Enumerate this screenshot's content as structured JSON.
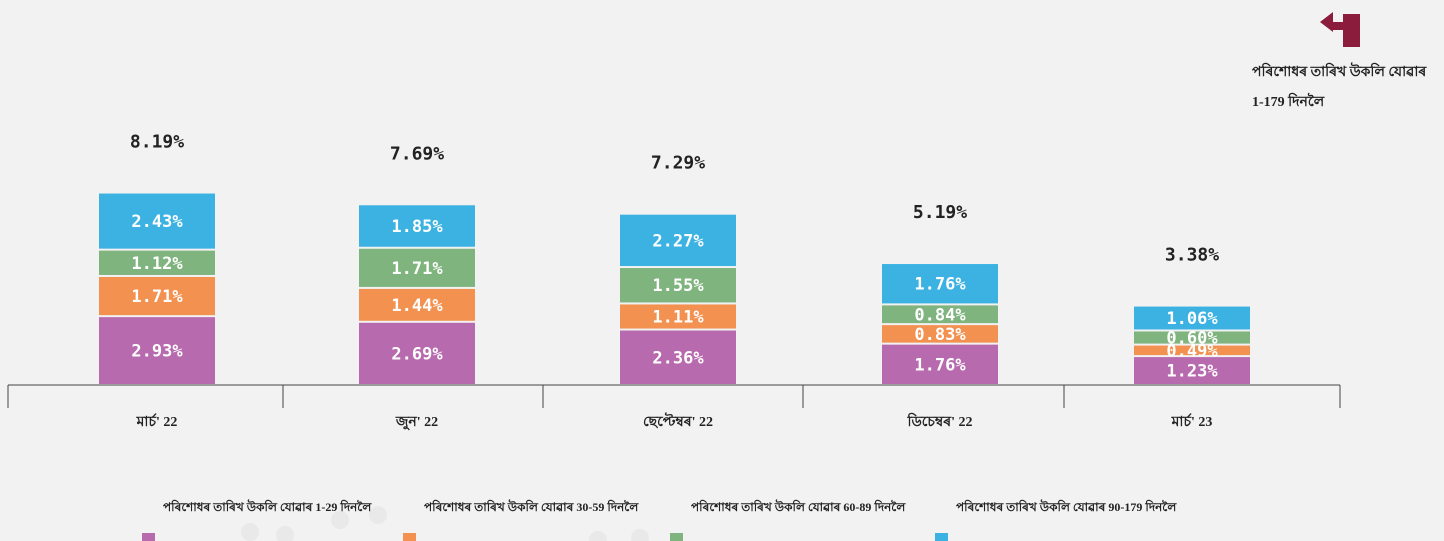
{
  "chart_data": {
    "type": "stacked_bar",
    "annotation": "পৰিশোধৰ তাৰিখ উকলি যোৱাৰ 1-179 দিনলৈ",
    "categories": [
      "মাৰ্চ' 22",
      "জুন' 22",
      "ছেপ্টেম্বৰ' 22",
      "ডিচেম্বৰ' 22",
      "মাৰ্চ' 23"
    ],
    "series": [
      {
        "name": "পৰিশোধৰ তাৰিখ উকলি যোৱাৰ 1-29 দিনলৈ",
        "color": "#b86aae",
        "values": [
          2.93,
          2.69,
          2.36,
          1.76,
          1.23
        ],
        "value_labels": [
          "2.93%",
          "2.69%",
          "2.36%",
          "1.76%",
          "1.23%"
        ]
      },
      {
        "name": "পৰিশোধৰ তাৰিখ উকলি যোৱাৰ 30-59 দিনলৈ",
        "color": "#f29150",
        "values": [
          1.71,
          1.44,
          1.11,
          0.83,
          0.49
        ],
        "value_labels": [
          "1.71%",
          "1.44%",
          "1.11%",
          "0.83%",
          "0.49%"
        ]
      },
      {
        "name": "পৰিশোধৰ তাৰিখ উকলি যোৱাৰ 60-89 দিনলৈ",
        "color": "#80b47f",
        "values": [
          1.12,
          1.71,
          1.55,
          0.84,
          0.6
        ],
        "value_labels": [
          "1.12%",
          "1.71%",
          "1.55%",
          "0.84%",
          "0.60%"
        ]
      },
      {
        "name": "পৰিশোধৰ তাৰিখ উকলি যোৱাৰ 90-179 দিনলৈ",
        "color": "#3cb2e2",
        "values": [
          2.43,
          1.85,
          2.27,
          1.76,
          1.06
        ],
        "value_labels": [
          "2.43%",
          "1.85%",
          "2.27%",
          "1.76%",
          "1.06%"
        ]
      }
    ],
    "totals": [
      8.19,
      7.69,
      7.29,
      5.19,
      3.38
    ],
    "total_labels": [
      "8.19%",
      "7.69%",
      "7.29%",
      "5.19%",
      "3.38%"
    ]
  }
}
